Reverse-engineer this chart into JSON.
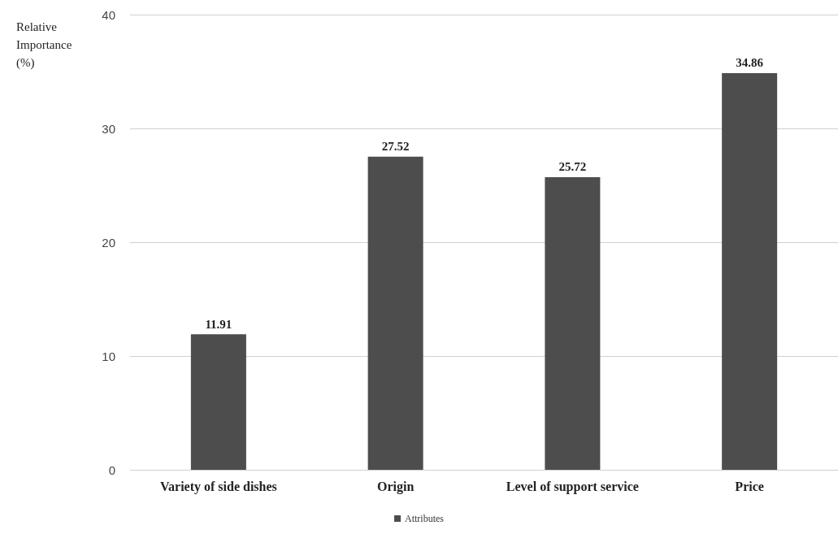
{
  "chart_data": {
    "type": "bar",
    "ylabel": "Relative Importance (%)",
    "categories": [
      "Variety of side dishes",
      "Origin",
      "Level of support service",
      "Price"
    ],
    "series": [
      {
        "name": "Attributes",
        "color": "#4d4d4d",
        "values": [
          11.91,
          27.52,
          25.72,
          34.86
        ]
      }
    ],
    "ylim": [
      0,
      40
    ],
    "yticks": [
      0,
      10,
      20,
      30,
      40
    ],
    "grid": "y",
    "legend": "bottom",
    "data_labels": true
  }
}
